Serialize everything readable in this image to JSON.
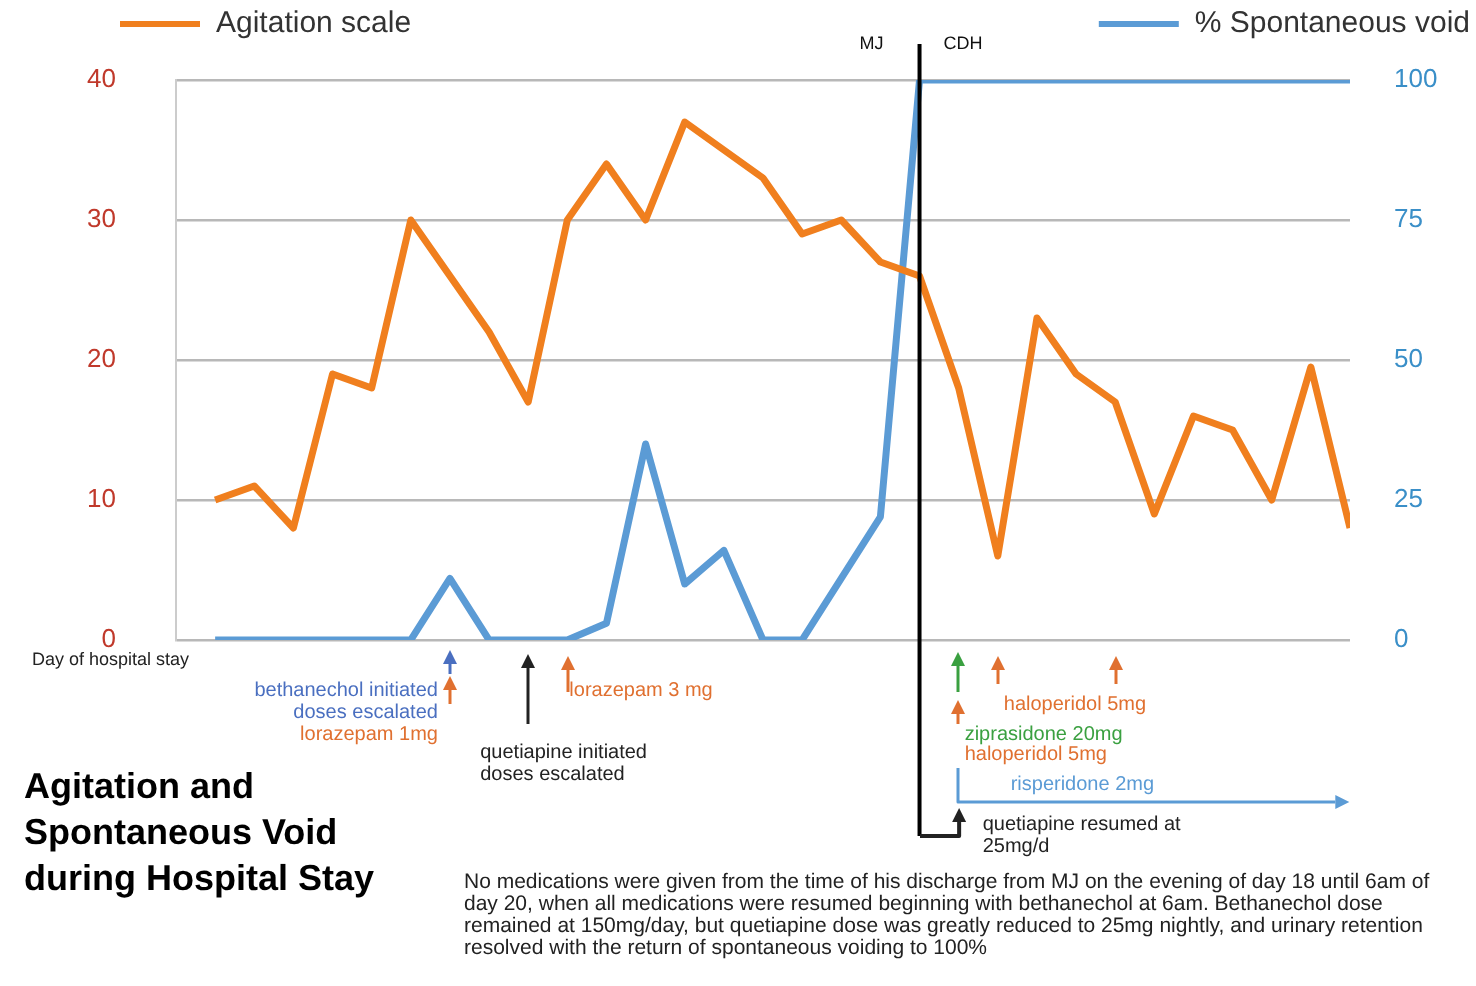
{
  "chart_data": {
    "type": "line",
    "title": "Agitation and Spontaneous Void during Hospital Stay",
    "xlabel": "Day of hospital stay",
    "categories": [
      null,
      null,
      null,
      null,
      null,
      null,
      null,
      null,
      null,
      null,
      null,
      null,
      null,
      null,
      null,
      null,
      null,
      null,
      null,
      null,
      null,
      null,
      null,
      null,
      null,
      null,
      null,
      null,
      null,
      null
    ],
    "series": [
      {
        "name": "Agitation scale",
        "color": "#f07f1e",
        "values": [
          10,
          11,
          8,
          19,
          18,
          30,
          26,
          22,
          17,
          30,
          34,
          30,
          37,
          35,
          33,
          29,
          30,
          27,
          26,
          18,
          6,
          23,
          19,
          17,
          9,
          16,
          15,
          10,
          19.5,
          8
        ]
      },
      {
        "name": "% Spontaneous void",
        "color": "#5b9bd5",
        "axis": "y2",
        "values": [
          0,
          0,
          0,
          0,
          0,
          0,
          11,
          0,
          0,
          0,
          3,
          35,
          10,
          16,
          0,
          0,
          11,
          22,
          100,
          100,
          100,
          100,
          100,
          100,
          100,
          100,
          100,
          100,
          100,
          100
        ]
      }
    ],
    "ylim": [
      0,
      40
    ],
    "yticks": [
      0,
      10,
      20,
      30,
      40
    ],
    "y2lim": [
      0,
      100
    ],
    "y2ticks": [
      0,
      25,
      50,
      75,
      100
    ],
    "grid": "y",
    "legend": "top",
    "tick_labels": "y",
    "marker": "none",
    "line_style": "solid",
    "annotations": [
      "MJ",
      "CDH",
      "bethanechol initiated\ndoses escalated",
      "lorazepam 1mg",
      "quetiapine initiated\ndoses escalated",
      "lorazepam 3 mg",
      "haloperidol 5mg",
      "ziprasidone 20mg",
      "haloperidol 5mg",
      "risperidone 2mg",
      "quetiapine resumed at\n25mg/d",
      "No medications were given from the time of his discharge from MJ on the evening of day 18 until 6am of day 20, when all medications were resumed beginning with bethanechol at 6am. Bethanechol dose remained at 150mg/day, but quetiapine dose was greatly reduced to 25mg nightly, and urinary retention resolved with the return of spontaneous voiding to 100%"
    ]
  }
}
